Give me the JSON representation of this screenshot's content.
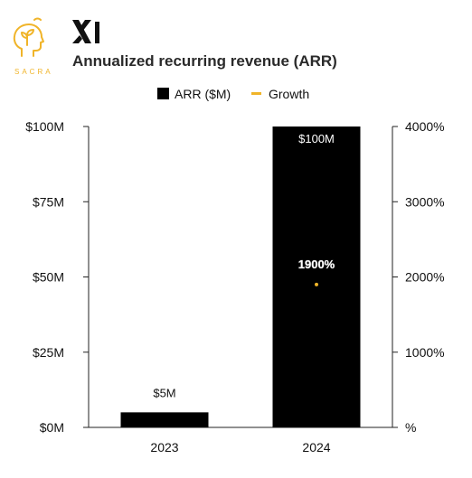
{
  "header": {
    "brand_word": "SACRA",
    "company_logo_text": "xAI",
    "title": "Annualized recurring revenue (ARR)"
  },
  "colors": {
    "bar": "#000000",
    "growth": "#f0b429",
    "sacra_brand": "#f0b429",
    "axis": "#222222"
  },
  "chart_data": {
    "type": "bar",
    "categories": [
      "2023",
      "2024"
    ],
    "series": [
      {
        "name": "ARR ($M)",
        "type": "bar",
        "axis": "left",
        "values": [
          5,
          100
        ],
        "data_labels": [
          "$5M",
          "$100M"
        ]
      },
      {
        "name": "Growth",
        "type": "line",
        "axis": "right",
        "values": [
          null,
          1900
        ],
        "data_labels": [
          "",
          "1900%"
        ]
      }
    ],
    "ylim": [
      0,
      100
    ],
    "y_ticks": [
      "$0M",
      "$25M",
      "$50M",
      "$75M",
      "$100M"
    ],
    "y2lim": [
      0,
      4000
    ],
    "y2_ticks": [
      "%",
      "1000%",
      "2000%",
      "3000%",
      "4000%"
    ],
    "legend_position": "top",
    "grid": false
  }
}
